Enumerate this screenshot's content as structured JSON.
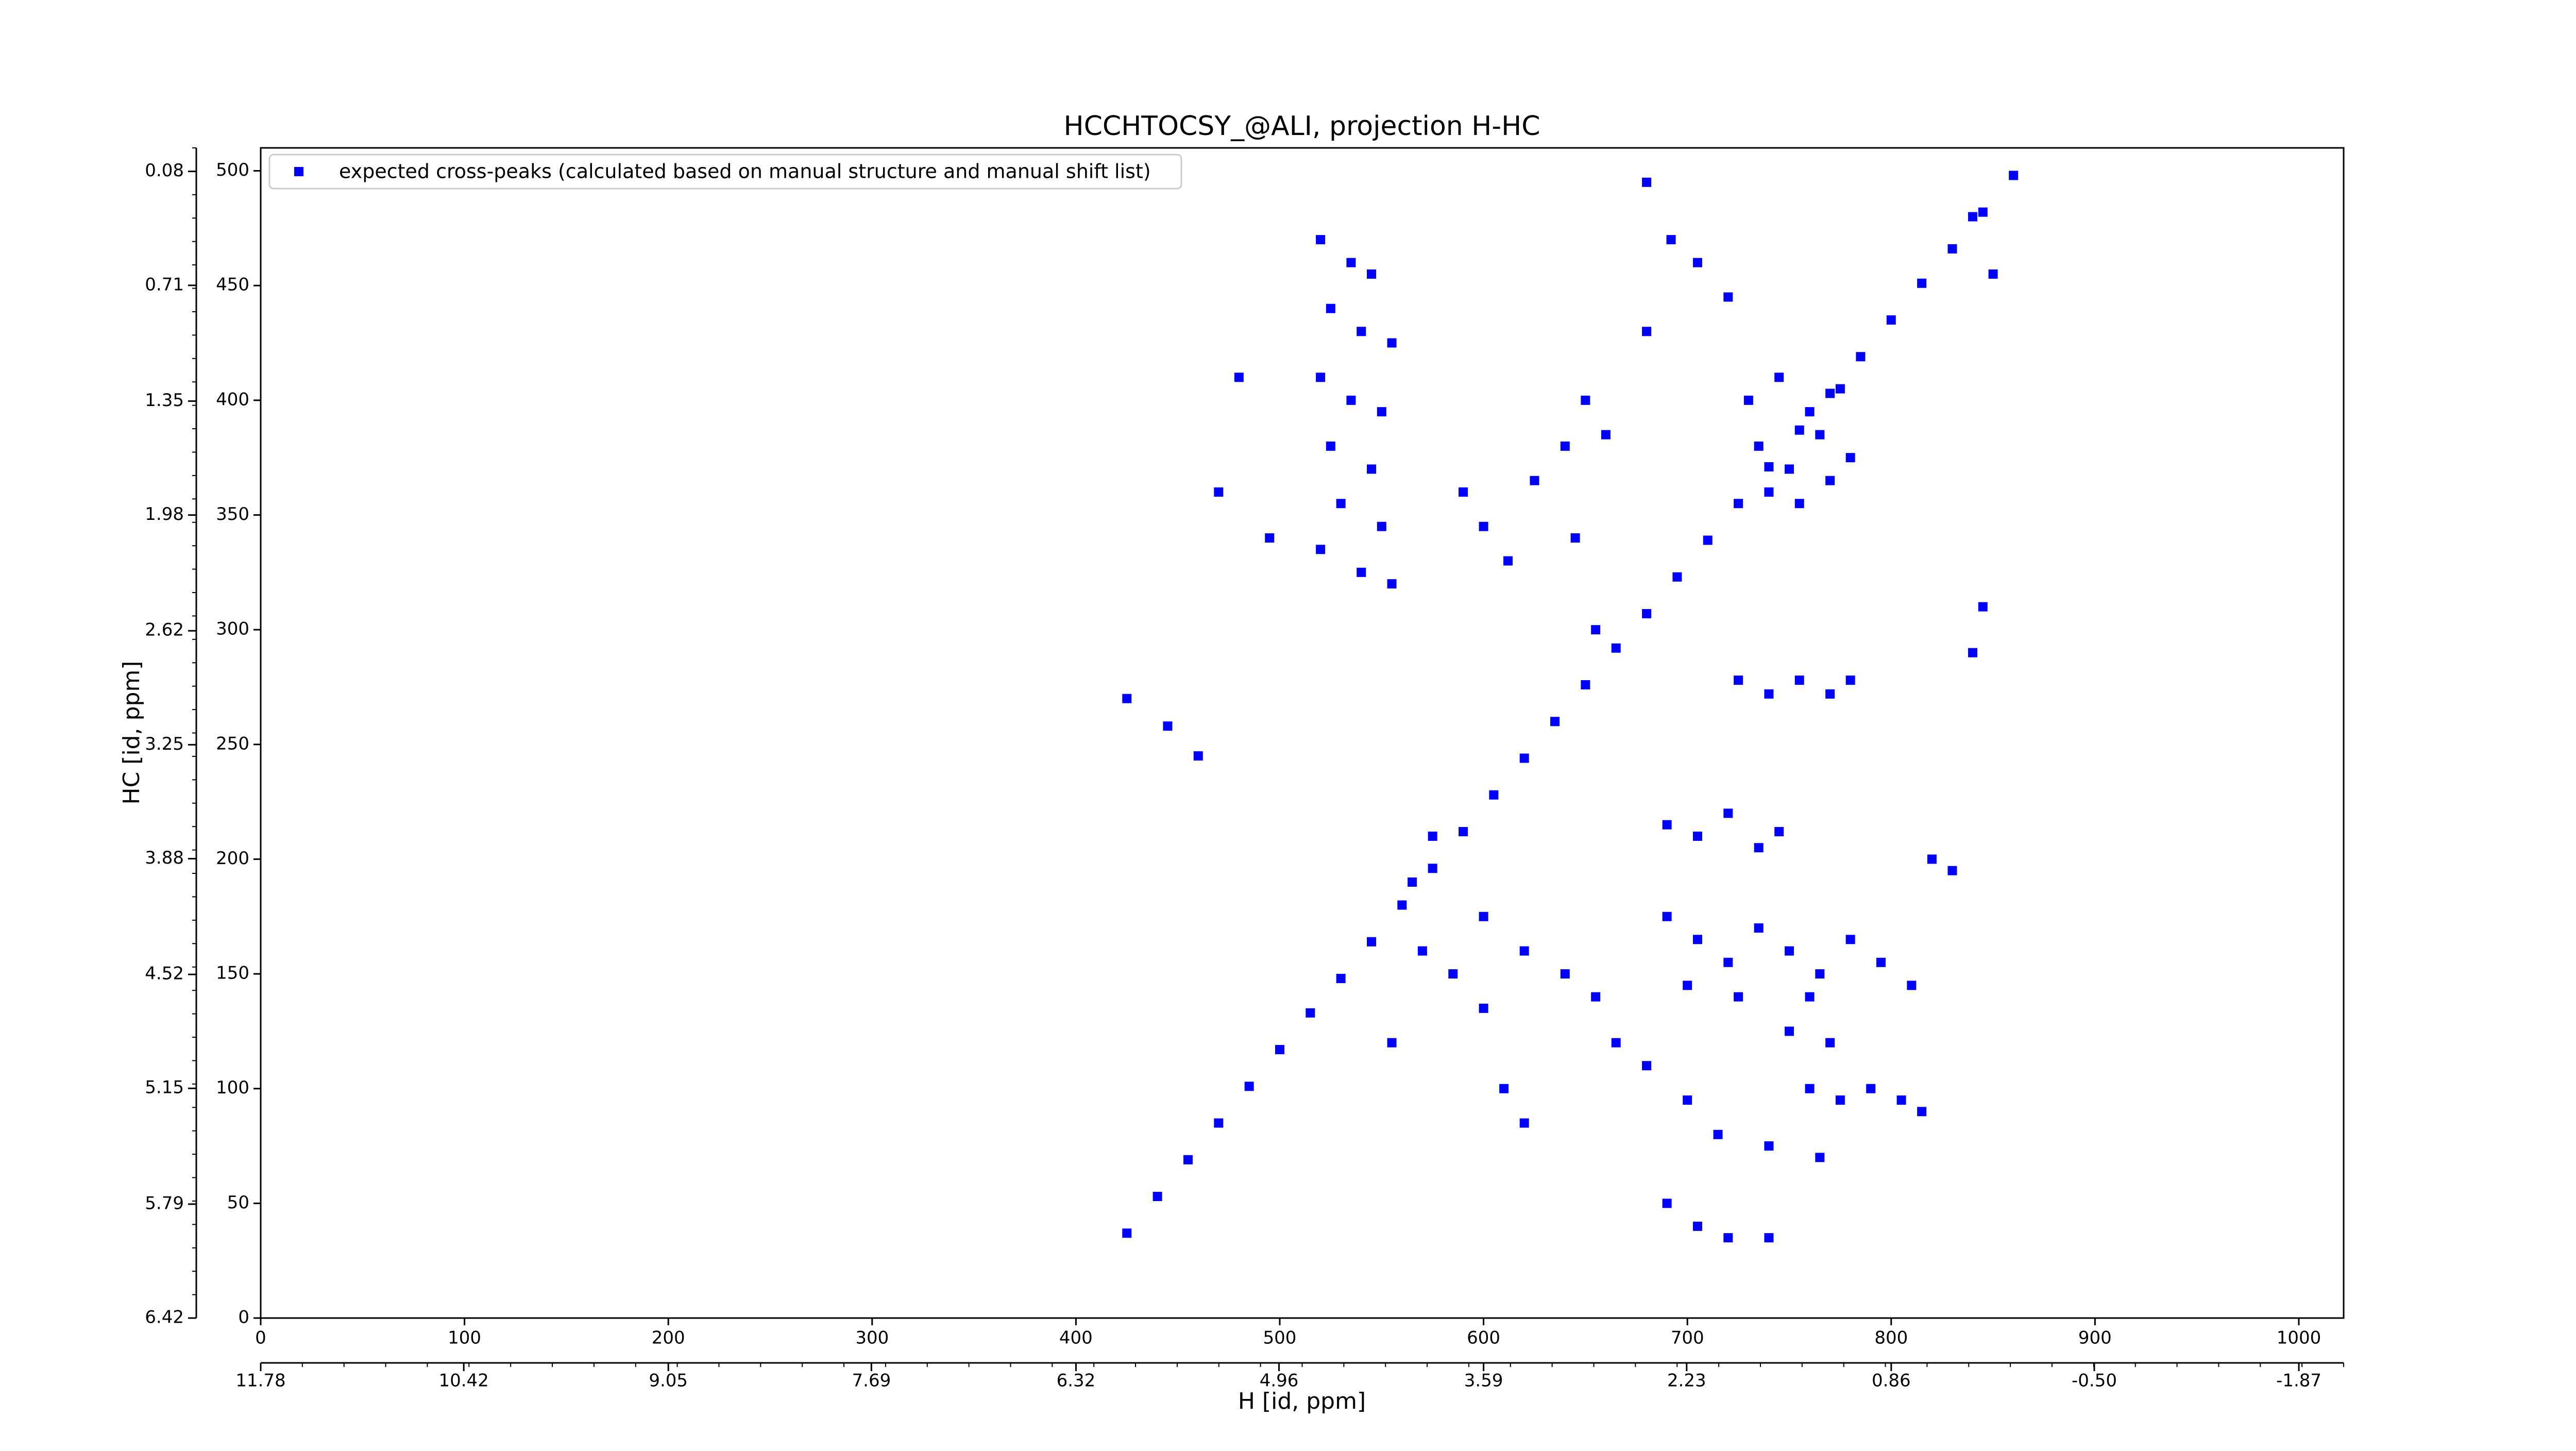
{
  "chart_data": {
    "type": "scatter",
    "title": "HCCHTOCSY_@ALI, projection H-HC",
    "xlabel": "H [id, ppm]",
    "ylabel": "HC [id, ppm]",
    "xlim": [
      0,
      1022
    ],
    "ylim": [
      0,
      510
    ],
    "xticks": [
      0,
      100,
      200,
      300,
      400,
      500,
      600,
      700,
      800,
      900,
      1000
    ],
    "yticks": [
      0,
      50,
      100,
      150,
      200,
      250,
      300,
      350,
      400,
      450,
      500
    ],
    "x2lim": [
      11.78,
      -2.17
    ],
    "x2ticks": [
      11.78,
      10.42,
      9.05,
      7.69,
      6.32,
      4.96,
      3.59,
      2.23,
      0.86,
      {
        "value": -0.5,
        "label": "-0.50"
      },
      -1.87
    ],
    "y2lim": [
      6.42,
      -0.05
    ],
    "y2ticks": [
      6.42,
      5.79,
      5.15,
      4.52,
      3.88,
      3.25,
      2.62,
      1.98,
      1.35,
      0.71,
      0.08
    ],
    "legend": "upper left",
    "series": [
      {
        "name": "expected cross-peaks (calculated based on manual structure and manual shift list)",
        "color": "#0000ff",
        "x": [
          425,
          440,
          455,
          470,
          485,
          500,
          515,
          530,
          545,
          560,
          575,
          590,
          605,
          620,
          635,
          650,
          665,
          680,
          695,
          710,
          725,
          740,
          755,
          770,
          785,
          800,
          815,
          830,
          845,
          860,
          520,
          535,
          545,
          525,
          540,
          555,
          520,
          535,
          550,
          525,
          545,
          530,
          550,
          520,
          540,
          555,
          730,
          745,
          760,
          775,
          735,
          750,
          765,
          780,
          740,
          755,
          770,
          690,
          705,
          720,
          735,
          750,
          765,
          780,
          795,
          810,
          700,
          725,
          760,
          690,
          705,
          720,
          735,
          745,
          725,
          740,
          755,
          770,
          780,
          425,
          445,
          460,
          470,
          480,
          495,
          590,
          600,
          612,
          625,
          640,
          650,
          660,
          645,
          655,
          680,
          692,
          680,
          705,
          720,
          840,
          850,
          845,
          840,
          820,
          830,
          600,
          620,
          640,
          655,
          665,
          680,
          700,
          715,
          740,
          765,
          690,
          705,
          720,
          740,
          575,
          565,
          570,
          610,
          620,
          555,
          600,
          585,
          760,
          775,
          790,
          805,
          815,
          750,
          770
        ],
        "y": [
          37,
          53,
          69,
          85,
          101,
          117,
          133,
          148,
          164,
          180,
          196,
          212,
          228,
          244,
          260,
          276,
          292,
          307,
          323,
          339,
          355,
          371,
          387,
          403,
          419,
          435,
          451,
          466,
          482,
          498,
          470,
          460,
          455,
          440,
          430,
          425,
          410,
          400,
          395,
          380,
          370,
          355,
          345,
          335,
          325,
          320,
          400,
          410,
          395,
          405,
          380,
          370,
          385,
          375,
          360,
          355,
          365,
          175,
          165,
          155,
          170,
          160,
          150,
          165,
          155,
          145,
          145,
          140,
          140,
          215,
          210,
          220,
          205,
          212,
          278,
          272,
          278,
          272,
          278,
          270,
          258,
          245,
          360,
          410,
          340,
          360,
          345,
          330,
          365,
          380,
          400,
          385,
          340,
          300,
          430,
          470,
          495,
          460,
          445,
          480,
          455,
          310,
          290,
          200,
          195,
          175,
          160,
          150,
          140,
          120,
          110,
          95,
          80,
          75,
          70,
          50,
          40,
          35,
          35,
          210,
          190,
          160,
          100,
          85,
          120,
          135,
          150,
          100,
          95,
          100,
          95,
          90,
          125,
          120
        ]
      }
    ]
  }
}
